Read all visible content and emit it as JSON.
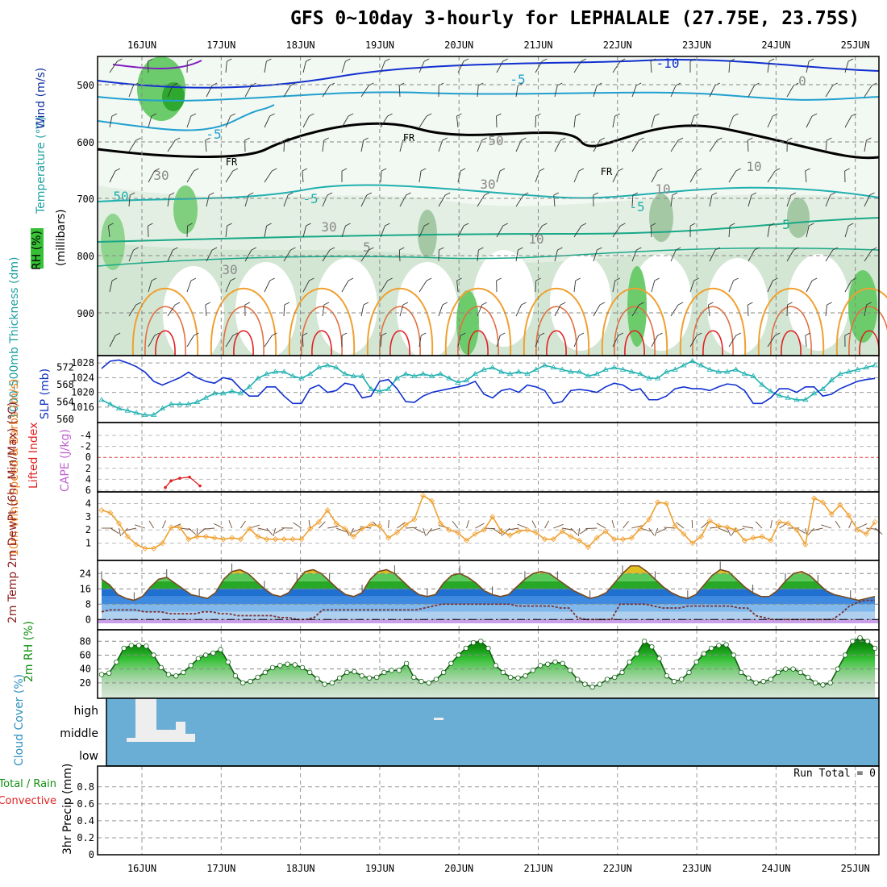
{
  "title": "GFS 0~10day 3-hourly for LEPHALALE (27.75E, 23.75S)",
  "run_total": "Run Total = 0",
  "colors": {
    "blue_line": "#1030d0",
    "cyan_line": "#20b0b0",
    "orange": "#f0a030",
    "red": "#e02020",
    "cloud": "#6aaed6",
    "rh_green": "#36c036"
  },
  "chart_data": [
    {
      "type": "area",
      "name": "upper",
      "x_ticks": [
        "16JUN",
        "17JUN",
        "18JUN",
        "19JUN",
        "20JUN",
        "21JUN",
        "22JUN",
        "23JUN",
        "24JUN",
        "25JUN"
      ],
      "y_ticks": [
        "500",
        "600",
        "700",
        "800",
        "900"
      ],
      "contour_labels": [
        "-10",
        "-5",
        "-5",
        "FR",
        "FR",
        "FR",
        "-5",
        "-5",
        "5",
        "5",
        "10",
        "30",
        "30",
        "30",
        "30",
        "50",
        "50",
        "10",
        "10",
        "0"
      ],
      "legend": [
        "RH (%)",
        "Temperature (°C)",
        "Wind (m/s)"
      ],
      "ylabel": "(millibars)"
    },
    {
      "type": "line",
      "name": "slp_thickness",
      "y_left_ticks": [
        "560",
        "564",
        "568",
        "572"
      ],
      "y_right_ticks": [
        "1016",
        "1020",
        "1024",
        "1028"
      ],
      "ylabel_left": "1000-500mb Thickness (dm)",
      "ylabel_right": "SLP (mb)",
      "series": [
        {
          "name": "SLP (mb)",
          "values": [
            1026.5,
            1028.5,
            1028.8,
            1028,
            1027,
            1025.5,
            1023,
            1022,
            1023,
            1024,
            1025.5,
            1024,
            1023,
            1022.5,
            1024,
            1023.5,
            1021,
            1019,
            1019,
            1021.5,
            1021.5,
            1019,
            1017,
            1017,
            1021,
            1022,
            1020,
            1020.5,
            1022.5,
            1022,
            1018.5,
            1019,
            1023,
            1023.5,
            1021,
            1017.5,
            1017.3,
            1019,
            1020,
            1020.5,
            1021,
            1021.5,
            1022,
            1023,
            1019.5,
            1018.5,
            1020.5,
            1021,
            1020,
            1022,
            1021.5,
            1020.5,
            1017,
            1017.5,
            1020.5,
            1020.8,
            1020.5,
            1020,
            1021.5,
            1022.5,
            1022,
            1020.5,
            1021,
            1018,
            1018,
            1019,
            1021,
            1021.5,
            1021,
            1021,
            1020.5,
            1021.5,
            1022.3,
            1022,
            1020.5,
            1017,
            1017,
            1018.5,
            1021,
            1021,
            1020,
            1021.5,
            1021.5,
            1019,
            1019.5,
            1021,
            1022,
            1023,
            1023.5,
            1023.8
          ]
        },
        {
          "name": "Thickness (dm)",
          "values": [
            564.5,
            563.5,
            562.5,
            562,
            561.5,
            561,
            561,
            562.5,
            563.5,
            563.5,
            563.5,
            564,
            565,
            566,
            566,
            566.5,
            566,
            567.5,
            569.5,
            570.5,
            571,
            571,
            570,
            569.5,
            570.5,
            572,
            572.5,
            572,
            570.5,
            570,
            570,
            567,
            566.5,
            567,
            569.5,
            570.5,
            570,
            570.5,
            570,
            570.5,
            569.5,
            568.5,
            569,
            570.5,
            571.5,
            572,
            571,
            570.5,
            571,
            570.5,
            571.5,
            572.5,
            572,
            571.5,
            571,
            571,
            570,
            570.5,
            571.5,
            572,
            571.5,
            571,
            570.5,
            569.5,
            569.5,
            571,
            571.5,
            572.5,
            573.5,
            572.5,
            571.5,
            571,
            571,
            571.5,
            570.5,
            570,
            568,
            566.5,
            565.5,
            565,
            564.5,
            564.5,
            566,
            567,
            569,
            570.5,
            571,
            571.5,
            572,
            572.5
          ]
        }
      ]
    },
    {
      "type": "line",
      "name": "lifted_index",
      "y_ticks": [
        "-4",
        "-2",
        "0",
        "2",
        "4",
        "6"
      ],
      "ylabel_left": "Lifted Index",
      "ylabel_right": "CAPE (J/kg)",
      "series": [
        {
          "name": "Lifted Index",
          "values": [
            5.5,
            4.3,
            3.8,
            3.6,
            5.2
          ]
        }
      ]
    },
    {
      "type": "line",
      "name": "wind10m",
      "y_ticks": [
        "1",
        "2",
        "3",
        "4"
      ],
      "ylabel": "10m Wind Speed & Barbs (m/s)",
      "series": [
        {
          "name": "10m Wind Speed",
          "values": [
            3.5,
            3.3,
            2.5,
            1.5,
            0.9,
            0.6,
            0.6,
            1.0,
            2.2,
            2.2,
            1.3,
            1.5,
            1.5,
            1.4,
            1.3,
            1.4,
            1.3,
            2.1,
            1.5,
            1.3,
            1.3,
            1.3,
            1.3,
            1.3,
            2.1,
            2.6,
            3.5,
            2.5,
            2.1,
            1.5,
            2.1,
            2.4,
            2.3,
            1.4,
            1.8,
            2.4,
            2.8,
            4.6,
            4.2,
            2.5,
            2.0,
            1.8,
            1.2,
            1.7,
            2.0,
            3.0,
            1.9,
            1.6,
            1.9,
            2.0,
            1.8,
            1.3,
            1.3,
            1.9,
            1.5,
            1.2,
            0.7,
            1.4,
            1.9,
            1.3,
            1.3,
            1.4,
            2.1,
            2.8,
            4.1,
            4.0,
            2.3,
            1.7,
            1.0,
            1.5,
            2.7,
            2.3,
            2.2,
            2.0,
            1.2,
            1.4,
            1.5,
            1.2,
            2.6,
            2.5,
            2.0,
            0.9,
            4.4,
            4.1,
            3.2,
            3.9,
            3.1,
            2.0,
            1.7,
            2.6
          ]
        }
      ]
    },
    {
      "type": "area",
      "name": "temp2m",
      "y_ticks": [
        "0",
        "8",
        "16",
        "24"
      ],
      "ylabel": "2m Temp 2m DewPt (6hr Min/Max) (°C)",
      "series": [
        {
          "name": "2m Temp",
          "values": [
            21,
            18,
            13,
            11,
            10,
            12,
            17,
            21,
            22,
            19,
            16,
            13,
            12,
            11,
            14,
            21,
            25,
            26,
            24,
            20,
            16,
            13,
            12,
            14,
            20,
            25,
            26,
            24,
            20,
            16,
            13,
            12,
            14,
            21,
            25,
            26,
            24,
            20,
            16,
            13,
            12,
            13,
            19,
            23,
            24,
            22,
            19,
            15,
            13,
            12,
            13,
            17,
            21,
            24,
            25,
            24,
            21,
            18,
            15,
            13,
            11,
            12,
            14,
            19,
            24,
            28,
            28,
            25,
            21,
            17,
            14,
            12,
            11,
            13,
            18,
            23,
            26,
            25,
            21,
            17,
            14,
            12,
            12,
            15,
            20,
            24,
            25,
            23,
            19,
            15,
            13,
            12,
            11,
            10,
            11,
            12
          ]
        },
        {
          "name": "2m DewPt",
          "values": [
            4,
            5,
            5,
            5,
            5,
            4,
            4,
            4,
            3,
            3,
            3,
            3,
            4,
            4,
            3,
            3,
            2,
            2,
            2,
            2,
            2,
            1,
            1,
            0,
            0,
            1,
            5,
            5,
            5,
            5,
            5,
            5,
            5,
            5,
            5,
            5,
            5,
            5,
            6,
            7,
            8,
            8,
            8,
            8,
            8,
            8,
            8,
            8,
            8,
            7,
            7,
            7,
            7,
            7,
            6,
            6,
            1,
            0,
            0,
            0,
            0,
            8,
            8,
            8,
            8,
            7,
            6,
            6,
            6,
            7,
            7,
            7,
            7,
            7,
            7,
            6,
            6,
            2,
            1,
            0,
            0,
            0,
            0,
            0,
            0,
            0,
            0,
            3,
            7,
            9,
            10,
            10
          ]
        }
      ]
    },
    {
      "type": "area",
      "name": "rh2m",
      "y_ticks": [
        "20",
        "40",
        "60",
        "80"
      ],
      "ylabel": "2m RH (%)",
      "series": [
        {
          "name": "2m RH",
          "values": [
            32,
            34,
            50,
            70,
            74,
            74,
            73,
            60,
            42,
            32,
            30,
            35,
            45,
            55,
            60,
            63,
            68,
            50,
            30,
            20,
            22,
            28,
            35,
            42,
            45,
            47,
            46,
            42,
            35,
            26,
            18,
            20,
            27,
            35,
            36,
            30,
            27,
            28,
            35,
            38,
            38,
            48,
            28,
            22,
            20,
            25,
            35,
            48,
            60,
            70,
            78,
            80,
            70,
            45,
            35,
            28,
            27,
            30,
            38,
            45,
            47,
            50,
            48,
            38,
            25,
            18,
            14,
            18,
            25,
            28,
            35,
            50,
            62,
            80,
            72,
            55,
            30,
            22,
            25,
            35,
            50,
            62,
            70,
            74,
            75,
            60,
            35,
            27,
            20,
            22,
            25,
            35,
            40,
            40,
            35,
            28,
            20,
            17,
            20,
            40,
            60,
            80,
            85,
            80,
            70
          ]
        }
      ]
    },
    {
      "type": "bar",
      "name": "cloud_cover",
      "y_ticks": [
        "high",
        "middle",
        "low"
      ],
      "ylabel": "Cloud Cover (%)"
    },
    {
      "type": "bar",
      "name": "precip",
      "y_ticks": [
        "0",
        "0.2",
        "0.4",
        "0.6",
        "0.8"
      ],
      "ylabel": "3hr Precip (mm)",
      "legend": [
        "Total / Rain",
        "Convective"
      ],
      "values": []
    }
  ]
}
